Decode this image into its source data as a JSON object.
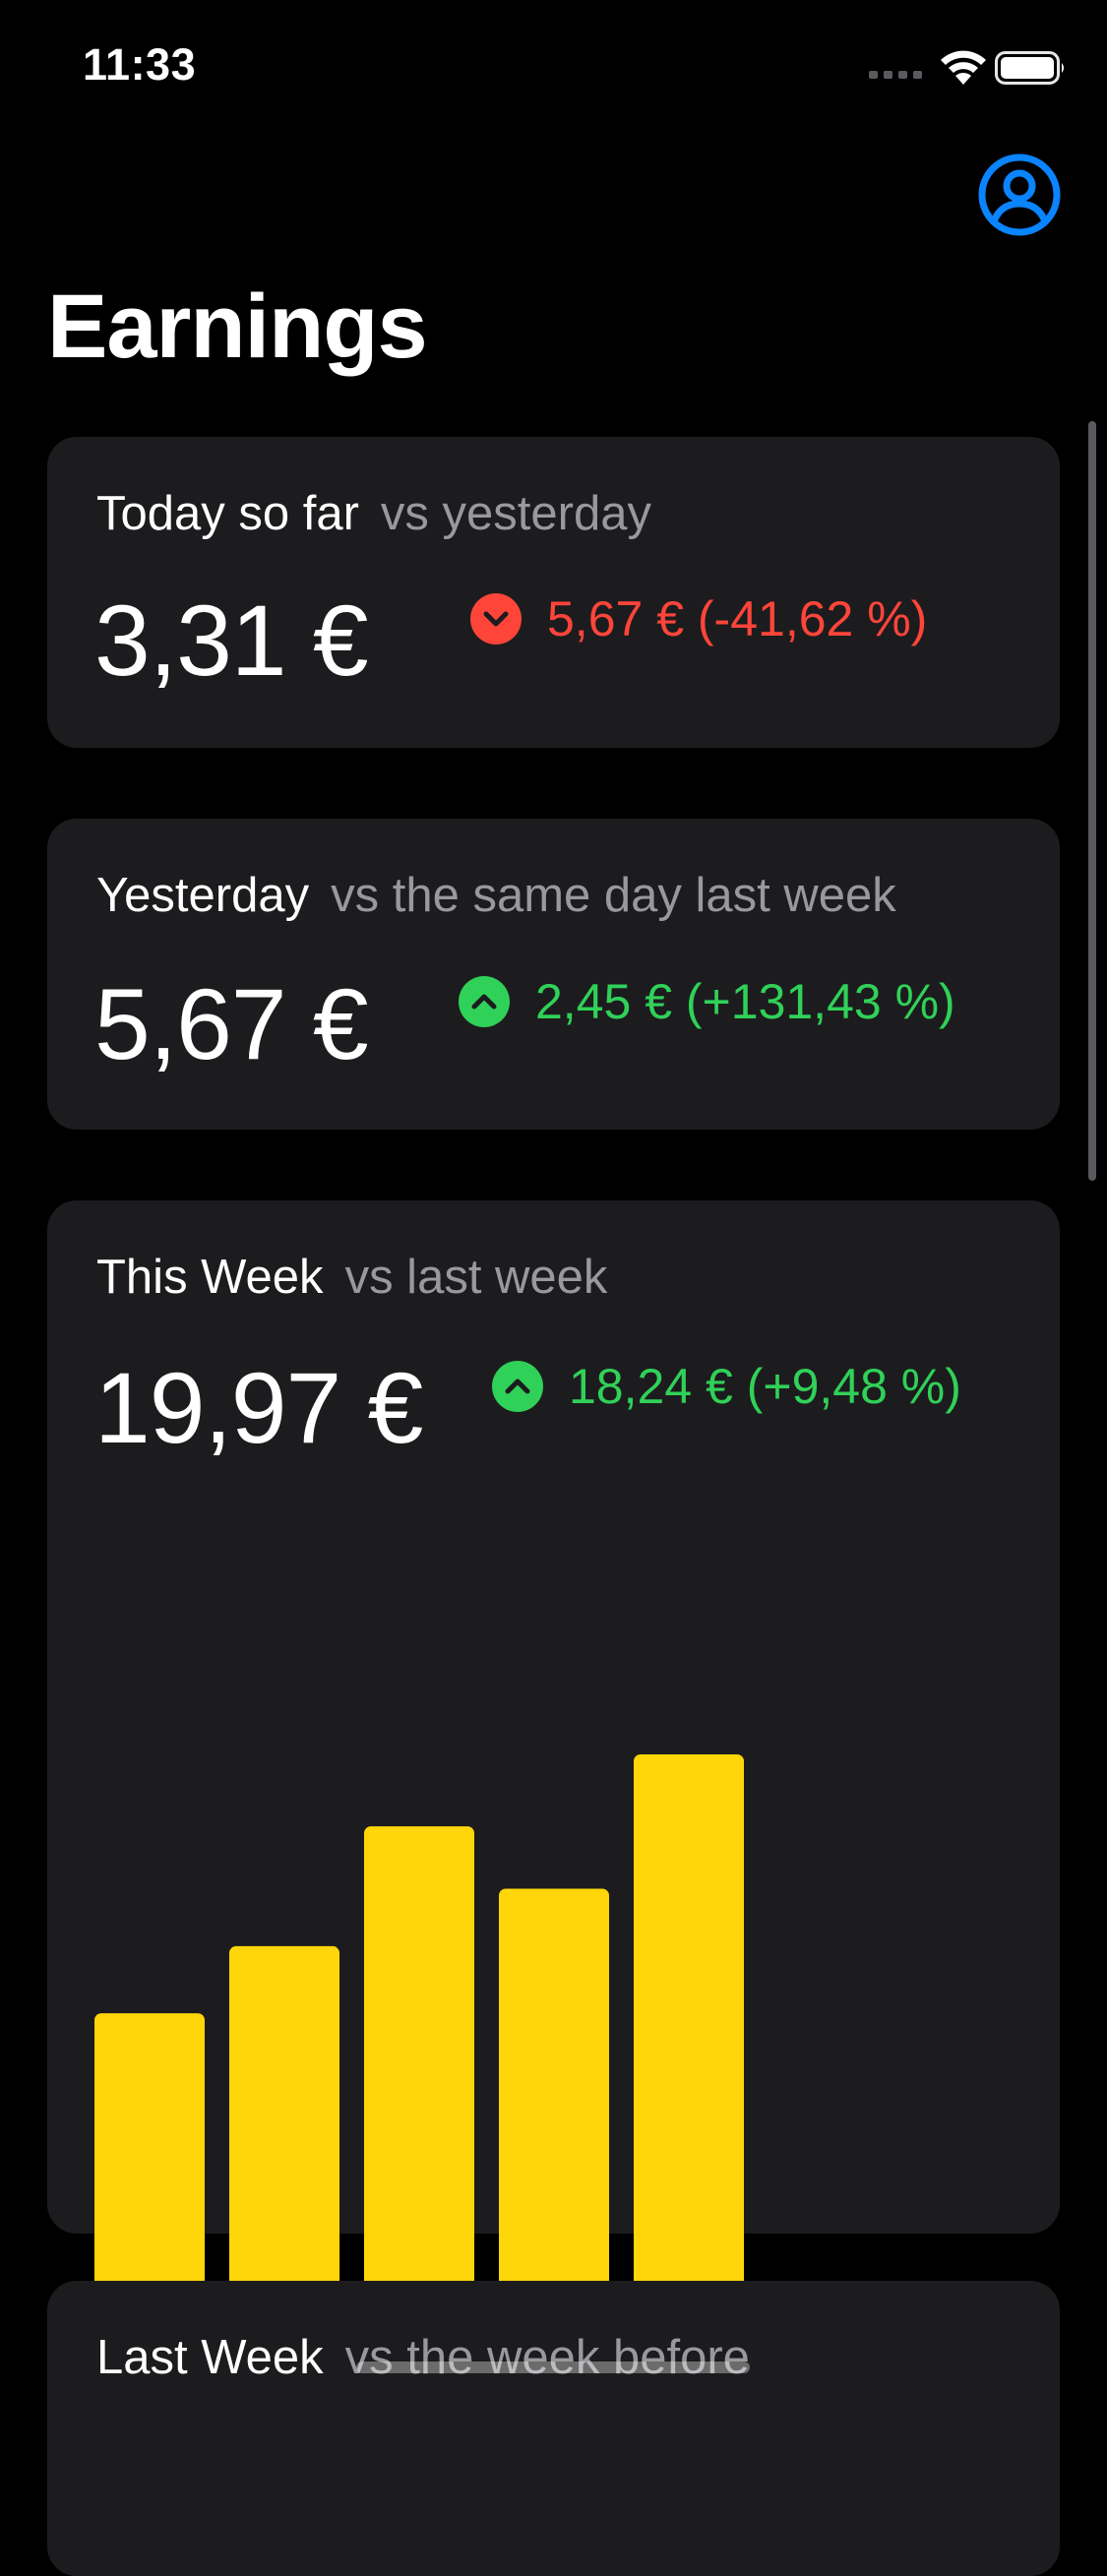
{
  "status_bar": {
    "time": "11:33",
    "icons": [
      "signal-icon",
      "wifi-icon",
      "battery-icon"
    ]
  },
  "header": {
    "title": "Earnings",
    "profile_icon": "person-circle-icon",
    "accent_color": "#0a84ff"
  },
  "colors": {
    "background": "#000000",
    "card": "#1c1c1e",
    "secondary_text": "#98989d",
    "down": "#ff453a",
    "up": "#30d158",
    "bar": "#ffd60a"
  },
  "cards": [
    {
      "label": "Today so far",
      "comparison": "vs yesterday",
      "amount": "3,31 €",
      "direction": "down",
      "direction_icon": "chevron-down-circle-icon",
      "delta": "5,67 € (-41,62 %)"
    },
    {
      "label": "Yesterday",
      "comparison": "vs the same day last week",
      "amount": "5,67 €",
      "direction": "up",
      "direction_icon": "chevron-up-circle-icon",
      "delta": "2,45 € (+131,43 %)"
    },
    {
      "label": "This Week",
      "comparison": "vs last week",
      "amount": "19,97 €",
      "direction": "up",
      "direction_icon": "chevron-up-circle-icon",
      "delta": "18,24 € (+9,48 %)"
    },
    {
      "label": "Last Week",
      "comparison": "vs the week before"
    }
  ],
  "chart_data": {
    "type": "bar",
    "categories": [
      "",
      "",
      "",
      "",
      ""
    ],
    "values": [
      3.2,
      3.9,
      5.15,
      4.5,
      5.9
    ],
    "ylim": [
      0,
      5.9
    ],
    "grid": false,
    "legend": "none",
    "color": "#ffd60a"
  }
}
